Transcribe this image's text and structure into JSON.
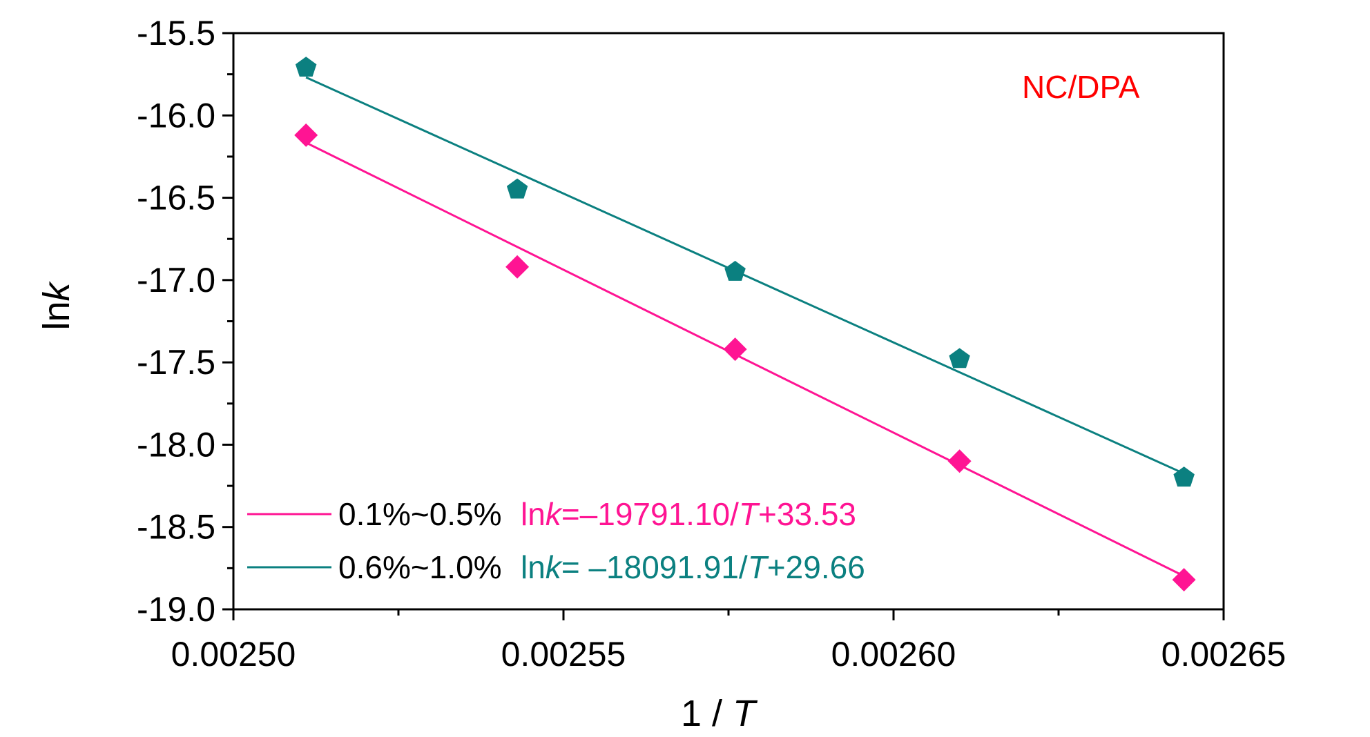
{
  "chart_data": {
    "type": "scatter",
    "title": "",
    "annotation": "NC/DPA",
    "xlabel": {
      "prefix": "1 / ",
      "var": "T"
    },
    "ylabel": {
      "prefix": "ln",
      "var": "k"
    },
    "xlim": [
      0.0025,
      0.00265
    ],
    "ylim": [
      -19.0,
      -15.5
    ],
    "x_ticks": [
      0.0025,
      0.00255,
      0.0026,
      0.00265
    ],
    "x_tick_labels": [
      "0.00250",
      "0.00255",
      "0.00260",
      "0.00265"
    ],
    "y_ticks": [
      -19.0,
      -18.5,
      -18.0,
      -17.5,
      -17.0,
      -16.5,
      -16.0,
      -15.5
    ],
    "y_tick_labels": [
      "-19.0",
      "-18.5",
      "-18.0",
      "-17.5",
      "-17.0",
      "-16.5",
      "-16.0",
      "-15.5"
    ],
    "grid": false,
    "legend_position": "bottom-left",
    "series": [
      {
        "name": "0.1%~0.5%",
        "color": "#ff1493",
        "marker": "diamond",
        "x": [
          0.002511,
          0.002543,
          0.002576,
          0.00261,
          0.002644
        ],
        "y": [
          -16.12,
          -16.92,
          -17.42,
          -18.1,
          -18.82
        ],
        "fit": {
          "slope": -19791.1,
          "intercept": 33.53
        },
        "equation": {
          "lhs": "ln",
          "var": "k",
          "mid": "=–19791.10/",
          "tvar": "T",
          "tail": "+33.53"
        }
      },
      {
        "name": "0.6%~1.0%",
        "color": "#0b8080",
        "marker": "pentagon",
        "x": [
          0.002511,
          0.002543,
          0.002576,
          0.00261,
          0.002644
        ],
        "y": [
          -15.71,
          -16.45,
          -16.95,
          -17.48,
          -18.2
        ],
        "fit": {
          "slope": -18091.91,
          "intercept": 29.66
        },
        "equation": {
          "lhs": "ln",
          "var": "k",
          "mid": "= –18091.91/",
          "tvar": "T",
          "tail": "+29.66"
        }
      }
    ],
    "colors": {
      "annotation": "#ff0000",
      "axes": "#000000"
    }
  }
}
